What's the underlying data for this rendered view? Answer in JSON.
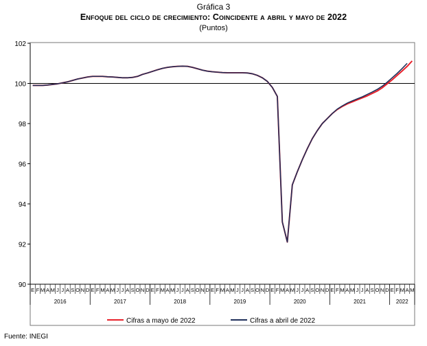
{
  "header": {
    "supertitle": "Gráfica 3",
    "title": "Enfoque del ciclo de crecimiento: Coincidente a abril y mayo de 2022",
    "units": "(Puntos)"
  },
  "source": "Fuente: INEGI",
  "colors": {
    "series_may": "#e8202a",
    "series_april": "#1f2f5a",
    "axis": "#000000",
    "frame": "#777777"
  },
  "chart_data": {
    "type": "line",
    "title": "Enfoque del ciclo de crecimiento: Coincidente a abril y mayo de 2022",
    "xlabel": "",
    "ylabel": "",
    "ylim": [
      90,
      102
    ],
    "yticks": [
      "90",
      "92",
      "94",
      "96",
      "98",
      "100",
      "102"
    ],
    "reference_line": 100,
    "grid": false,
    "legend_position": "bottom",
    "month_labels": [
      "E",
      "F",
      "M",
      "A",
      "M",
      "J",
      "J",
      "A",
      "S",
      "O",
      "N",
      "D",
      "E",
      "F",
      "M",
      "A",
      "M",
      "J",
      "J",
      "A",
      "S",
      "O",
      "N",
      "D",
      "E",
      "F",
      "M",
      "A",
      "M",
      "J",
      "J",
      "A",
      "S",
      "O",
      "N",
      "D",
      "E",
      "F",
      "M",
      "A",
      "M",
      "J",
      "J",
      "A",
      "S",
      "O",
      "N",
      "D",
      "E",
      "F",
      "M",
      "A",
      "M",
      "J",
      "J",
      "A",
      "S",
      "O",
      "N",
      "D",
      "E",
      "F",
      "M",
      "A",
      "M",
      "J",
      "J",
      "A",
      "S",
      "O",
      "N",
      "D",
      "E",
      "F",
      "M",
      "A",
      "M"
    ],
    "year_labels": [
      "2016",
      "2017",
      "2018",
      "2019",
      "2020",
      "2021",
      "2022"
    ],
    "series": [
      {
        "name": "Cifras a mayo de 2022",
        "values": [
          99.9,
          99.9,
          99.9,
          99.92,
          99.95,
          99.98,
          100.03,
          100.08,
          100.15,
          100.22,
          100.27,
          100.32,
          100.35,
          100.35,
          100.35,
          100.33,
          100.32,
          100.3,
          100.28,
          100.28,
          100.3,
          100.35,
          100.45,
          100.52,
          100.6,
          100.68,
          100.75,
          100.8,
          100.83,
          100.85,
          100.86,
          100.85,
          100.8,
          100.73,
          100.66,
          100.61,
          100.58,
          100.56,
          100.54,
          100.53,
          100.53,
          100.53,
          100.53,
          100.52,
          100.48,
          100.4,
          100.28,
          100.1,
          99.8,
          99.35,
          93.1,
          92.1,
          94.95,
          95.6,
          96.2,
          96.75,
          97.25,
          97.65,
          98.0,
          98.25,
          98.5,
          98.7,
          98.85,
          98.98,
          99.08,
          99.18,
          99.28,
          99.38,
          99.5,
          99.62,
          99.78,
          99.98,
          100.18,
          100.4,
          100.62,
          100.85,
          101.12
        ]
      },
      {
        "name": "Cifras a abril de 2022",
        "values": [
          99.9,
          99.9,
          99.9,
          99.92,
          99.95,
          99.98,
          100.03,
          100.08,
          100.15,
          100.22,
          100.27,
          100.32,
          100.35,
          100.35,
          100.35,
          100.33,
          100.32,
          100.3,
          100.28,
          100.28,
          100.3,
          100.35,
          100.45,
          100.52,
          100.6,
          100.68,
          100.75,
          100.8,
          100.83,
          100.85,
          100.86,
          100.85,
          100.8,
          100.73,
          100.66,
          100.61,
          100.58,
          100.56,
          100.54,
          100.53,
          100.53,
          100.53,
          100.53,
          100.52,
          100.48,
          100.4,
          100.28,
          100.1,
          99.8,
          99.35,
          93.1,
          92.1,
          94.95,
          95.6,
          96.2,
          96.75,
          97.25,
          97.65,
          98.0,
          98.25,
          98.5,
          98.72,
          98.88,
          99.02,
          99.13,
          99.23,
          99.33,
          99.45,
          99.57,
          99.7,
          99.86,
          100.06,
          100.28,
          100.5,
          100.74,
          101.0
        ]
      }
    ]
  }
}
